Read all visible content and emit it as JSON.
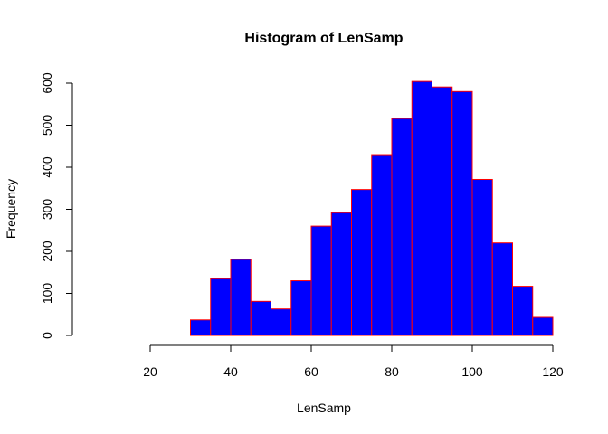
{
  "chart_data": {
    "type": "bar",
    "title": "Histogram of LenSamp",
    "xlabel": "LenSamp",
    "ylabel": "Frequency",
    "bin_edges": [
      30,
      35,
      40,
      45,
      50,
      55,
      60,
      65,
      70,
      75,
      80,
      85,
      90,
      95,
      100,
      105,
      110,
      115,
      120
    ],
    "values": [
      37,
      135,
      181,
      81,
      63,
      130,
      260,
      292,
      347,
      430,
      516,
      604,
      591,
      580,
      371,
      220,
      117,
      43
    ],
    "xlim": [
      20,
      120
    ],
    "ylim": [
      0,
      600
    ],
    "x_ticks": [
      20,
      40,
      60,
      80,
      100,
      120
    ],
    "y_ticks": [
      0,
      100,
      200,
      300,
      400,
      500,
      600
    ],
    "bar_fill": "#0000ff",
    "bar_border": "#ff0000",
    "grid": false,
    "legend": "none"
  }
}
